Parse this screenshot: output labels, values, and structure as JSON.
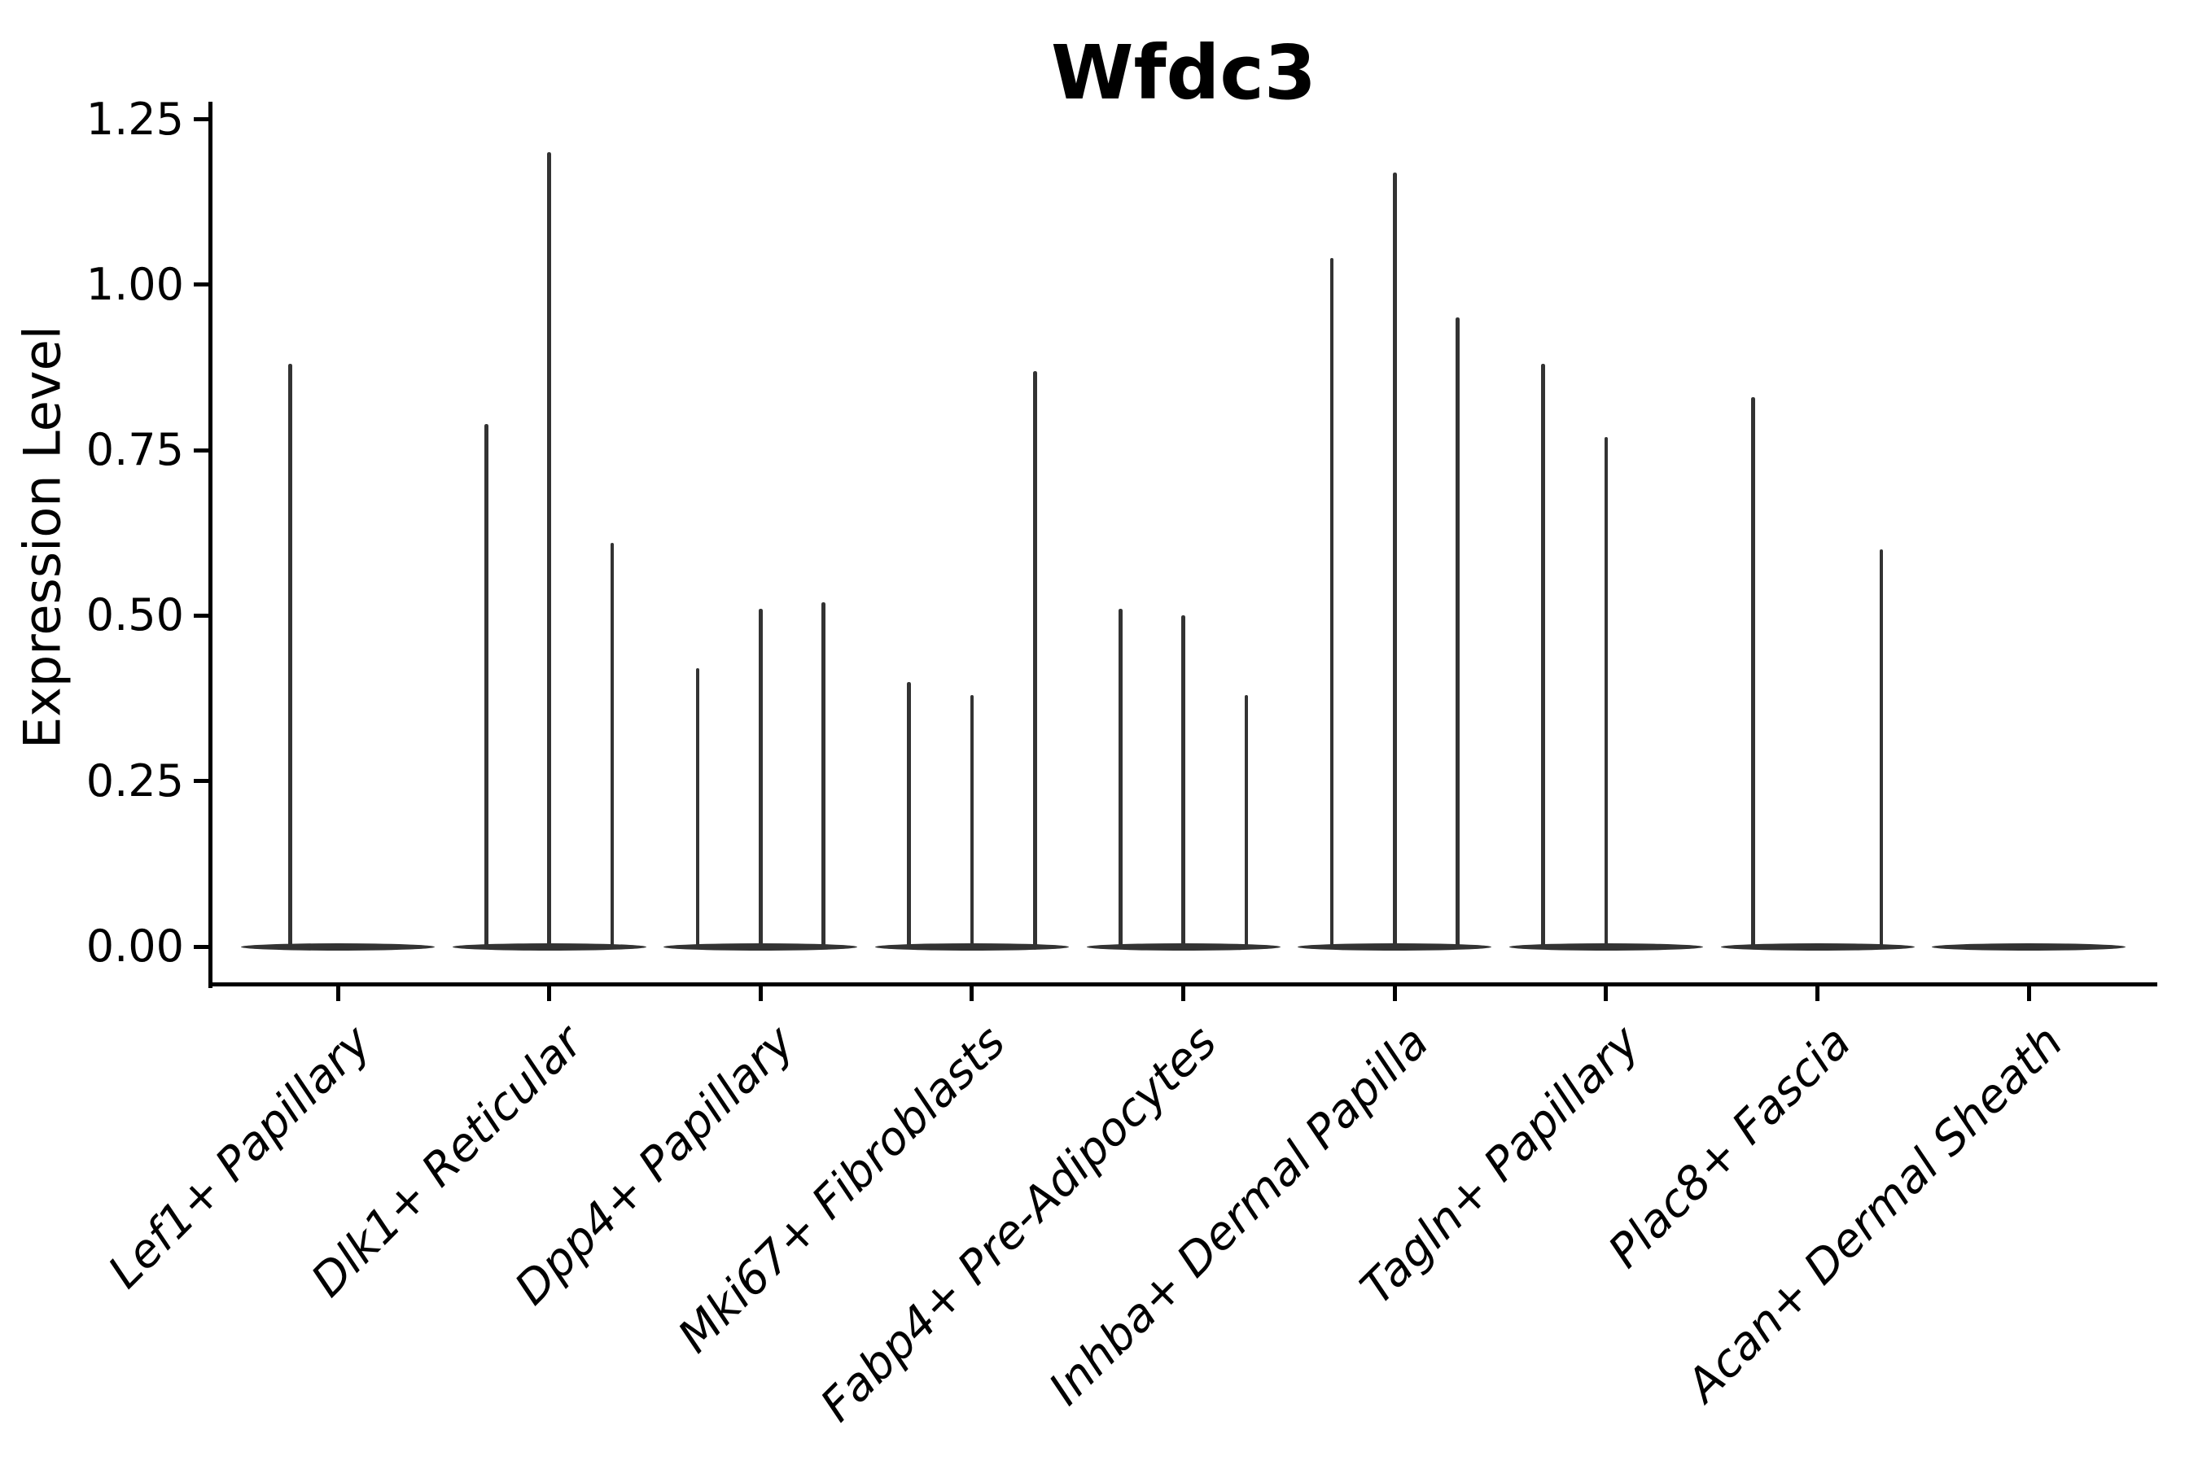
{
  "title": "Wfdc3",
  "y_axis": {
    "label": "Expression Level",
    "tick_labels": [
      "0.00",
      "0.25",
      "0.50",
      "0.75",
      "1.00",
      "1.25"
    ],
    "tick_values": [
      0,
      0.25,
      0.5,
      0.75,
      1.0,
      1.25
    ]
  },
  "x_axis": {
    "categories": [
      "Lef1+ Papillary",
      "Dlk1+ Reticular",
      "Dpp4+ Papillary",
      "Mki67+ Fibroblasts",
      "Fabp4+ Pre-Adipocytes",
      "Inhba+ Dermal Papilla",
      "Tagln+ Papillary",
      "Plac8+ Fascia",
      "Acan+ Dermal Sheath"
    ]
  },
  "chart_data": {
    "type": "violin",
    "title": "Wfdc3",
    "xlabel": "",
    "ylabel": "Expression Level",
    "ylim": [
      -0.057,
      1.28
    ],
    "yticks": [
      0,
      0.25,
      0.5,
      0.75,
      1.0,
      1.25
    ],
    "grid": false,
    "legend": "none",
    "description": "Seurat-style violin plot; each cluster shows 1-3 extremely thin dodged violins (flat body at 0 with a narrow spike to the max expression value).",
    "groups": [
      {
        "label": "Lef1+ Papillary",
        "spikes": [
          {
            "offset": -0.226,
            "max": 0.88
          }
        ]
      },
      {
        "label": "Dlk1+ Reticular",
        "spikes": [
          {
            "offset": -0.298,
            "max": 0.79
          },
          {
            "offset": 0,
            "max": 1.2
          },
          {
            "offset": 0.298,
            "max": 0.61
          }
        ]
      },
      {
        "label": "Dpp4+ Papillary",
        "spikes": [
          {
            "offset": -0.298,
            "max": 0.42
          },
          {
            "offset": 0,
            "max": 0.51
          },
          {
            "offset": 0.298,
            "max": 0.52
          }
        ]
      },
      {
        "label": "Mki67+ Fibroblasts",
        "spikes": [
          {
            "offset": -0.298,
            "max": 0.4
          },
          {
            "offset": 0,
            "max": 0.38
          },
          {
            "offset": 0.298,
            "max": 0.87
          }
        ]
      },
      {
        "label": "Fabp4+ Pre-Adipocytes",
        "spikes": [
          {
            "offset": -0.298,
            "max": 0.51
          },
          {
            "offset": 0,
            "max": 0.5
          },
          {
            "offset": 0.298,
            "max": 0.38
          }
        ]
      },
      {
        "label": "Inhba+ Dermal Papilla",
        "spikes": [
          {
            "offset": -0.298,
            "max": 1.04
          },
          {
            "offset": 0,
            "max": 1.17
          },
          {
            "offset": 0.298,
            "max": 0.95
          }
        ]
      },
      {
        "label": "Tagln+ Papillary",
        "spikes": [
          {
            "offset": -0.298,
            "max": 0.88
          },
          {
            "offset": 0,
            "max": 0.77
          }
        ]
      },
      {
        "label": "Plac8+ Fascia",
        "spikes": [
          {
            "offset": -0.304,
            "max": 0.83
          },
          {
            "offset": 0.302,
            "max": 0.6
          }
        ]
      },
      {
        "label": "Acan+ Dermal Sheath",
        "spikes": []
      }
    ],
    "body_width_fraction": 0.916,
    "body_value": 0,
    "colors": {
      "violin": "#333333",
      "axis": "#000000",
      "text": "#000000",
      "background": "#ffffff"
    }
  }
}
